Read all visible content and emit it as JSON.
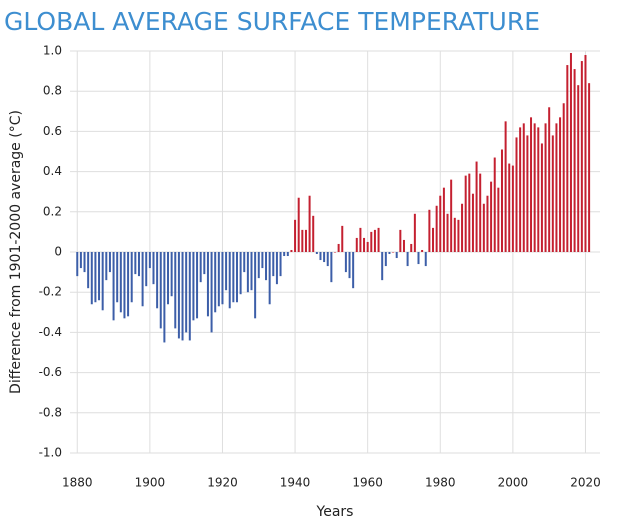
{
  "chart_data": {
    "type": "bar",
    "title": "GLOBAL AVERAGE SURFACE TEMPERATURE",
    "x_label": "Years",
    "y_label": "Difference from 1901-2000 average (°C)",
    "x": [
      1880,
      1881,
      1882,
      1883,
      1884,
      1885,
      1886,
      1887,
      1888,
      1889,
      1890,
      1891,
      1892,
      1893,
      1894,
      1895,
      1896,
      1897,
      1898,
      1899,
      1900,
      1901,
      1902,
      1903,
      1904,
      1905,
      1906,
      1907,
      1908,
      1909,
      1910,
      1911,
      1912,
      1913,
      1914,
      1915,
      1916,
      1917,
      1918,
      1919,
      1920,
      1921,
      1922,
      1923,
      1924,
      1925,
      1926,
      1927,
      1928,
      1929,
      1930,
      1931,
      1932,
      1933,
      1934,
      1935,
      1936,
      1937,
      1938,
      1939,
      1940,
      1941,
      1942,
      1943,
      1944,
      1945,
      1946,
      1947,
      1948,
      1949,
      1950,
      1951,
      1952,
      1953,
      1954,
      1955,
      1956,
      1957,
      1958,
      1959,
      1960,
      1961,
      1962,
      1963,
      1964,
      1965,
      1966,
      1967,
      1968,
      1969,
      1970,
      1971,
      1972,
      1973,
      1974,
      1975,
      1976,
      1977,
      1978,
      1979,
      1980,
      1981,
      1982,
      1983,
      1984,
      1985,
      1986,
      1987,
      1988,
      1989,
      1990,
      1991,
      1992,
      1993,
      1994,
      1995,
      1996,
      1997,
      1998,
      1999,
      2000,
      2001,
      2002,
      2003,
      2004,
      2005,
      2006,
      2007,
      2008,
      2009,
      2010,
      2011,
      2012,
      2013,
      2014,
      2015,
      2016,
      2017,
      2018,
      2019,
      2020,
      2021
    ],
    "values": [
      -0.12,
      -0.08,
      -0.1,
      -0.18,
      -0.26,
      -0.25,
      -0.24,
      -0.29,
      -0.14,
      -0.1,
      -0.34,
      -0.25,
      -0.3,
      -0.33,
      -0.32,
      -0.25,
      -0.11,
      -0.12,
      -0.27,
      -0.17,
      -0.08,
      -0.16,
      -0.28,
      -0.38,
      -0.45,
      -0.26,
      -0.22,
      -0.38,
      -0.43,
      -0.44,
      -0.4,
      -0.44,
      -0.34,
      -0.33,
      -0.15,
      -0.11,
      -0.32,
      -0.4,
      -0.3,
      -0.27,
      -0.26,
      -0.19,
      -0.28,
      -0.25,
      -0.25,
      -0.21,
      -0.1,
      -0.2,
      -0.19,
      -0.33,
      -0.13,
      -0.08,
      -0.14,
      -0.26,
      -0.12,
      -0.16,
      -0.12,
      -0.02,
      -0.02,
      0.01,
      0.16,
      0.27,
      0.11,
      0.11,
      0.28,
      0.18,
      -0.01,
      -0.04,
      -0.05,
      -0.07,
      -0.15,
      0.0,
      0.04,
      0.13,
      -0.1,
      -0.13,
      -0.18,
      0.07,
      0.12,
      0.07,
      0.05,
      0.1,
      0.11,
      0.12,
      -0.14,
      -0.07,
      -0.01,
      0.0,
      -0.03,
      0.11,
      0.06,
      -0.07,
      0.04,
      0.19,
      -0.06,
      0.01,
      -0.07,
      0.21,
      0.12,
      0.23,
      0.28,
      0.32,
      0.19,
      0.36,
      0.17,
      0.16,
      0.24,
      0.38,
      0.39,
      0.29,
      0.45,
      0.39,
      0.24,
      0.28,
      0.35,
      0.47,
      0.32,
      0.51,
      0.65,
      0.44,
      0.43,
      0.57,
      0.62,
      0.64,
      0.58,
      0.67,
      0.64,
      0.62,
      0.54,
      0.64,
      0.72,
      0.58,
      0.64,
      0.67,
      0.74,
      0.93,
      0.99,
      0.91,
      0.83,
      0.95,
      0.98,
      0.84
    ],
    "positive_color": "#c42030",
    "negative_color": "#3c5ea8",
    "xlim": [
      1878,
      2024
    ],
    "xticks": [
      1880,
      1900,
      1920,
      1940,
      1960,
      1980,
      2000,
      2020
    ],
    "ylim": [
      -1,
      1
    ],
    "yticks": [
      {
        "value": 1,
        "label": "1.0"
      },
      0.8,
      0.6,
      0.4,
      0.2,
      0,
      -0.2,
      -0.4,
      -0.6,
      -0.8,
      {
        "value": -1,
        "label": "-1.0"
      }
    ],
    "grid": true
  }
}
